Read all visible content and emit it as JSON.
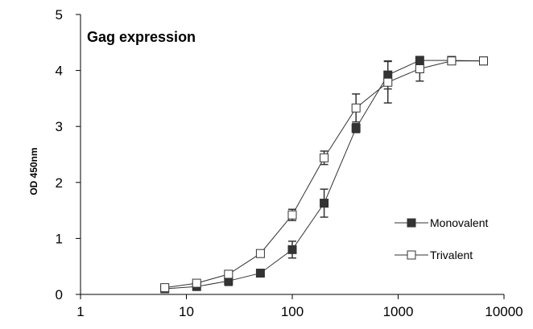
{
  "chart_data": {
    "type": "line",
    "title": "",
    "annotation": "Gag expression",
    "xlabel": "",
    "ylabel": "OD 450nm",
    "xscale": "log",
    "xlim": [
      1,
      10000
    ],
    "ylim": [
      0,
      5
    ],
    "x_ticks": [
      1,
      10,
      100,
      1000,
      10000
    ],
    "x_tick_labels": [
      "1",
      "10",
      "100",
      "1000",
      "10000"
    ],
    "y_ticks": [
      0,
      1,
      2,
      3,
      4,
      5
    ],
    "y_tick_labels": [
      "0",
      "1",
      "2",
      "3",
      "4",
      "5"
    ],
    "grid": false,
    "legend_position": "right",
    "colors": {
      "axis": "#000000",
      "line": "#333333",
      "filled_marker": "#333333",
      "open_marker": "#ffffff"
    },
    "series": [
      {
        "name": "Monovalent",
        "marker": "filled-square",
        "x": [
          6.25,
          12.5,
          25,
          50,
          100,
          200,
          400,
          800,
          1600,
          3200,
          6400
        ],
        "y": [
          0.1,
          0.14,
          0.24,
          0.38,
          0.8,
          1.63,
          2.97,
          3.92,
          4.18,
          4.18,
          4.17
        ],
        "error": [
          0.02,
          0.03,
          0.08,
          0.05,
          0.15,
          0.25,
          0.08,
          0.25,
          0.06,
          0.03,
          0.02
        ]
      },
      {
        "name": "Trivalent",
        "marker": "open-square",
        "x": [
          6.25,
          12.5,
          25,
          50,
          100,
          200,
          400,
          800,
          1600,
          3200,
          6400
        ],
        "y": [
          0.12,
          0.2,
          0.36,
          0.73,
          1.42,
          2.44,
          3.33,
          3.79,
          4.03,
          4.17,
          4.17
        ],
        "error": [
          0.03,
          0.03,
          0.03,
          0.04,
          0.1,
          0.12,
          0.25,
          0.37,
          0.22,
          0.05,
          0.02
        ]
      }
    ]
  }
}
